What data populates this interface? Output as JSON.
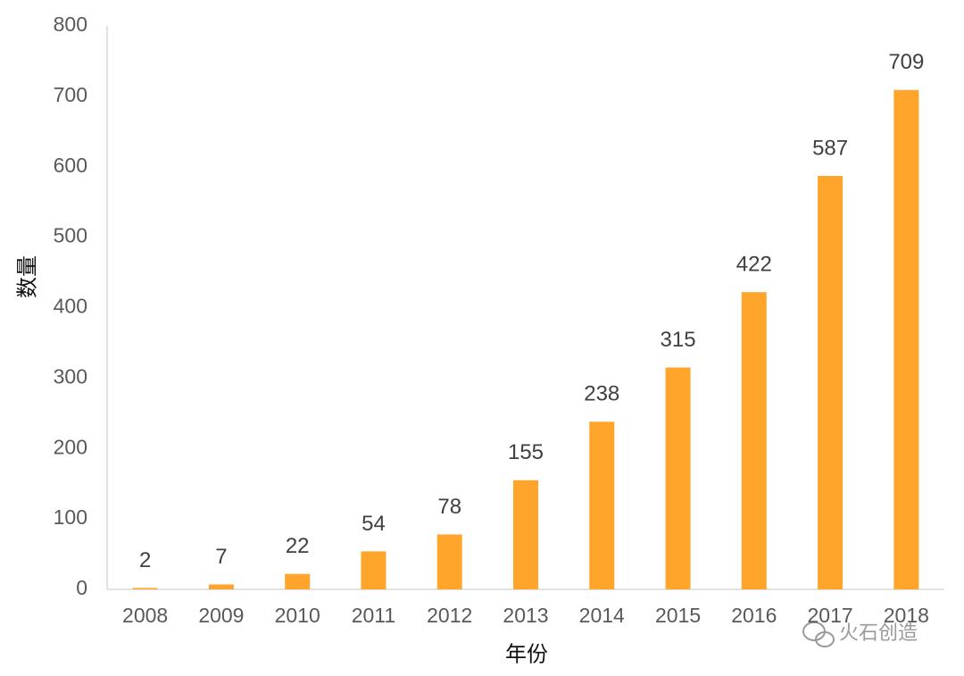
{
  "chart_data": {
    "type": "bar",
    "x_label": "年份",
    "y_label": "数量",
    "categories": [
      "2008",
      "2009",
      "2010",
      "2011",
      "2012",
      "2013",
      "2014",
      "2015",
      "2016",
      "2017",
      "2018"
    ],
    "values": [
      2,
      7,
      22,
      54,
      78,
      155,
      238,
      315,
      422,
      587,
      709
    ],
    "color": "#ffa52b",
    "ylim": [
      0,
      800
    ],
    "yticks": [
      0,
      100,
      200,
      300,
      400,
      500,
      600,
      700,
      800
    ],
    "grid": false,
    "watermark": "火石创造"
  }
}
